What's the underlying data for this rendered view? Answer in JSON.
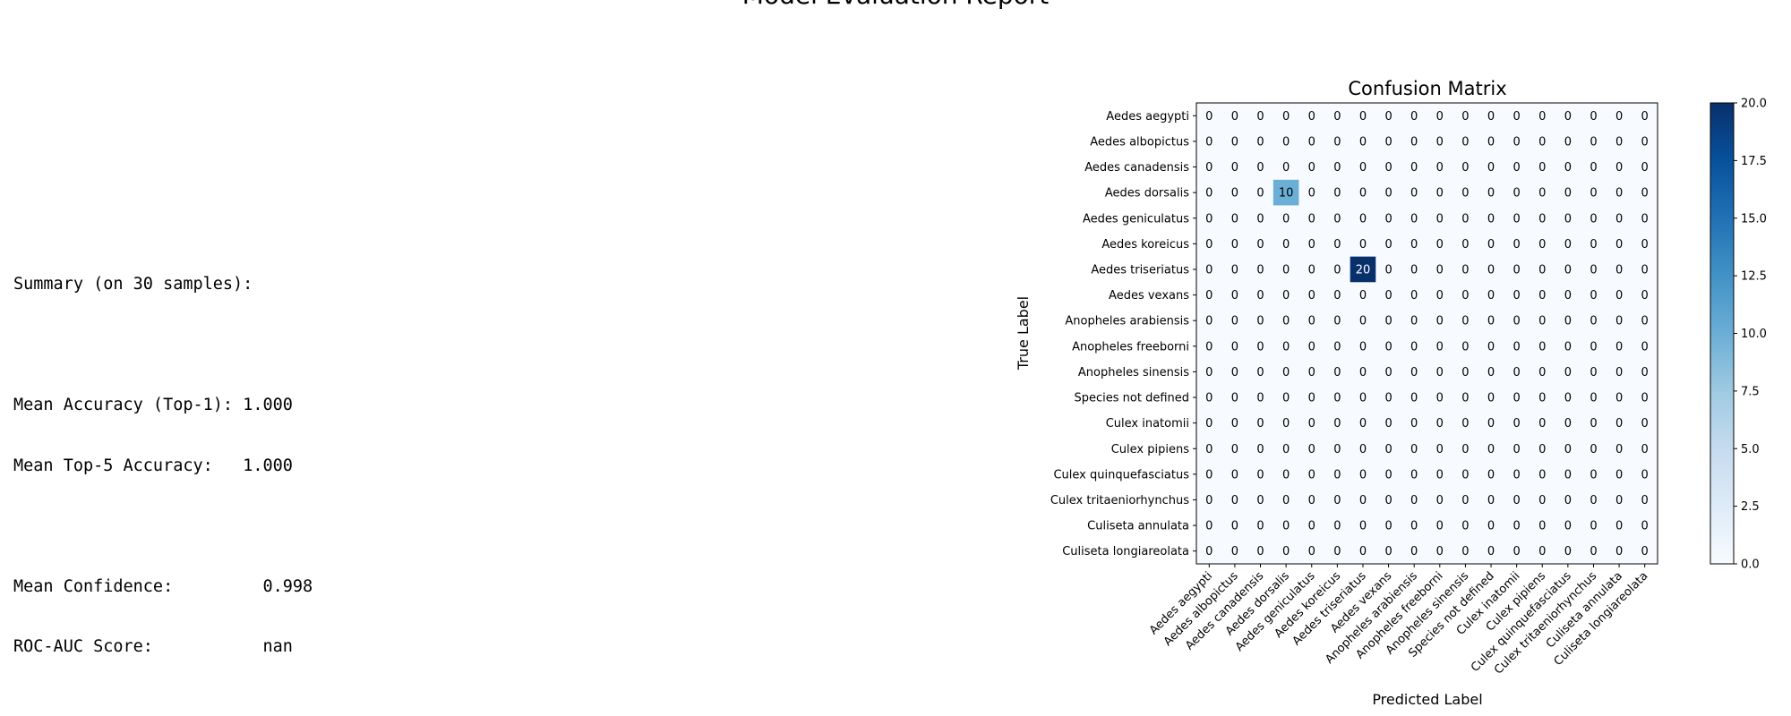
{
  "page": {
    "title": "Model Evaluation Report"
  },
  "summary": {
    "heading": "Summary (on 30 samples):",
    "lines": [
      {
        "label": "Mean Accuracy (Top-1):",
        "value": "1.000"
      },
      {
        "label": "Mean Top-5 Accuracy:",
        "value": "1.000"
      },
      {
        "label": "Mean Confidence:",
        "value": "0.998"
      },
      {
        "label": "ROC-AUC Score:",
        "value": "nan"
      }
    ]
  },
  "chart_data": {
    "type": "heatmap",
    "title": "Confusion Matrix",
    "xlabel": "Predicted Label",
    "ylabel": "True Label",
    "rows": [
      "Aedes aegypti",
      "Aedes albopictus",
      "Aedes canadensis",
      "Aedes dorsalis",
      "Aedes geniculatus",
      "Aedes koreicus",
      "Aedes triseriatus",
      "Aedes vexans",
      "Anopheles arabiensis",
      "Anopheles freeborni",
      "Anopheles sinensis",
      "Species not defined",
      "Culex inatomii",
      "Culex pipiens",
      "Culex quinquefasciatus",
      "Culex tritaeniorhynchus",
      "Culiseta annulata",
      "Culiseta longiareolata"
    ],
    "columns": [
      "Aedes aegypti",
      "Aedes albopictus",
      "Aedes canadensis",
      "Aedes dorsalis",
      "Aedes geniculatus",
      "Aedes koreicus",
      "Aedes triseriatus",
      "Aedes vexans",
      "Anopheles arabiensis",
      "Anopheles freeborni",
      "Anopheles sinensis",
      "Species not defined",
      "Culex inatomii",
      "Culex pipiens",
      "Culex quinquefasciatus",
      "Culex tritaeniorhynchus",
      "Culiseta annulata",
      "Culiseta longiareolata"
    ],
    "nonzero_cells": [
      {
        "row": "Aedes dorsalis",
        "column": "Aedes dorsalis",
        "value": 10
      },
      {
        "row": "Aedes triseriatus",
        "column": "Aedes triseriatus",
        "value": 20
      }
    ],
    "colorbar": {
      "range": [
        0,
        20
      ],
      "ticks": [
        "0.0",
        "2.5",
        "5.0",
        "7.5",
        "10.0",
        "12.5",
        "15.0",
        "17.5",
        "20.0"
      ],
      "colormap": "Blues",
      "low_color": "#f7fbff",
      "high_color": "#08306b"
    }
  }
}
